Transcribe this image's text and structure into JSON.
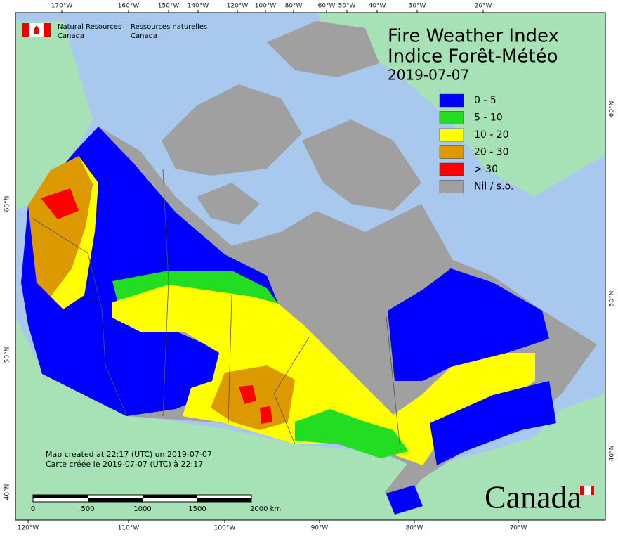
{
  "header": {
    "agency_en_1": "Natural Resources",
    "agency_en_2": "Canada",
    "agency_fr_1": "Ressources naturelles",
    "agency_fr_2": "Canada"
  },
  "title": {
    "en": "Fire Weather Index",
    "fr": "Indice Forêt-Météo",
    "date": "2019-07-07"
  },
  "legend": [
    {
      "label": "0 - 5",
      "color": "#0000ff"
    },
    {
      "label": "5 - 10",
      "color": "#22dd22"
    },
    {
      "label": "10 - 20",
      "color": "#ffff00"
    },
    {
      "label": "20 - 30",
      "color": "#dd9900"
    },
    {
      "label": "> 30",
      "color": "#ff0000"
    },
    {
      "label": "Nil / s.o.",
      "color": "#a0a0a0"
    }
  ],
  "graticule": {
    "top": [
      "170°W",
      "160°W",
      "150°W",
      "140°W",
      "120°W",
      "100°W",
      "80°W",
      "60°W",
      "50°W",
      "40°W",
      "30°W",
      "20°W"
    ],
    "bottom": [
      "120°W",
      "110°W",
      "100°W",
      "90°W",
      "80°W",
      "70°W"
    ],
    "left": [
      "60°N",
      "50°N",
      "40°N"
    ],
    "right": [
      "60°N",
      "50°N",
      "40°N"
    ]
  },
  "notes": [
    "Map created at 22:17 (UTC) on 2019-07-07",
    "Carte créée le 2019-07-07 (UTC) à 22:17"
  ],
  "scale_bar": [
    "0",
    "500",
    "1000",
    "1500",
    "2000 km"
  ],
  "wordmark": "Canada"
}
